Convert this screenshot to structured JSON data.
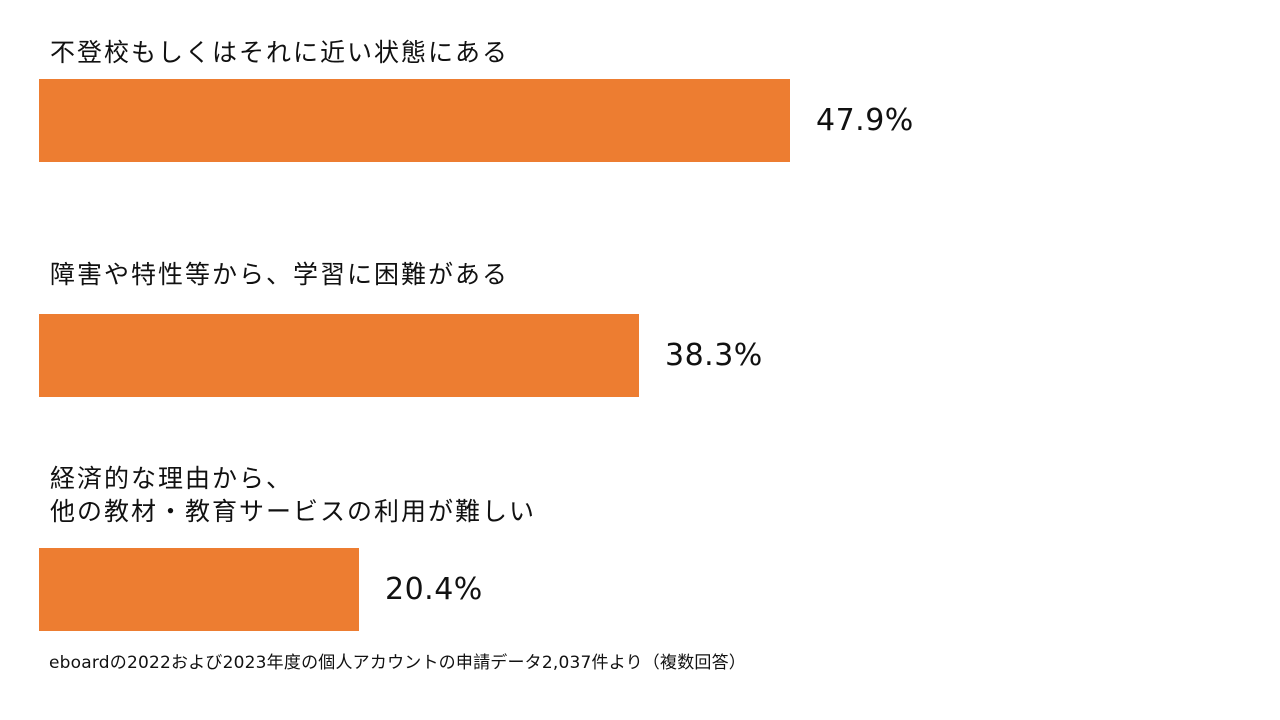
{
  "chart_data": {
    "type": "bar",
    "orientation": "horizontal",
    "categories": [
      "不登校もしくはそれに近い状態にある",
      "障害や特性等から、学習に困難がある",
      "経済的な理由から、\n他の教材・教育サービスの利用が難しい"
    ],
    "values": [
      47.9,
      38.3,
      20.4
    ],
    "value_labels": [
      "47.9%",
      "38.3%",
      "20.4%"
    ],
    "unit": "%",
    "bar_color": "#ED7D31",
    "grid": false,
    "axes_visible": false
  },
  "footnote": "eboardの2022および2023年度の個人アカウントの申請データ2,037件より（複数回答）"
}
